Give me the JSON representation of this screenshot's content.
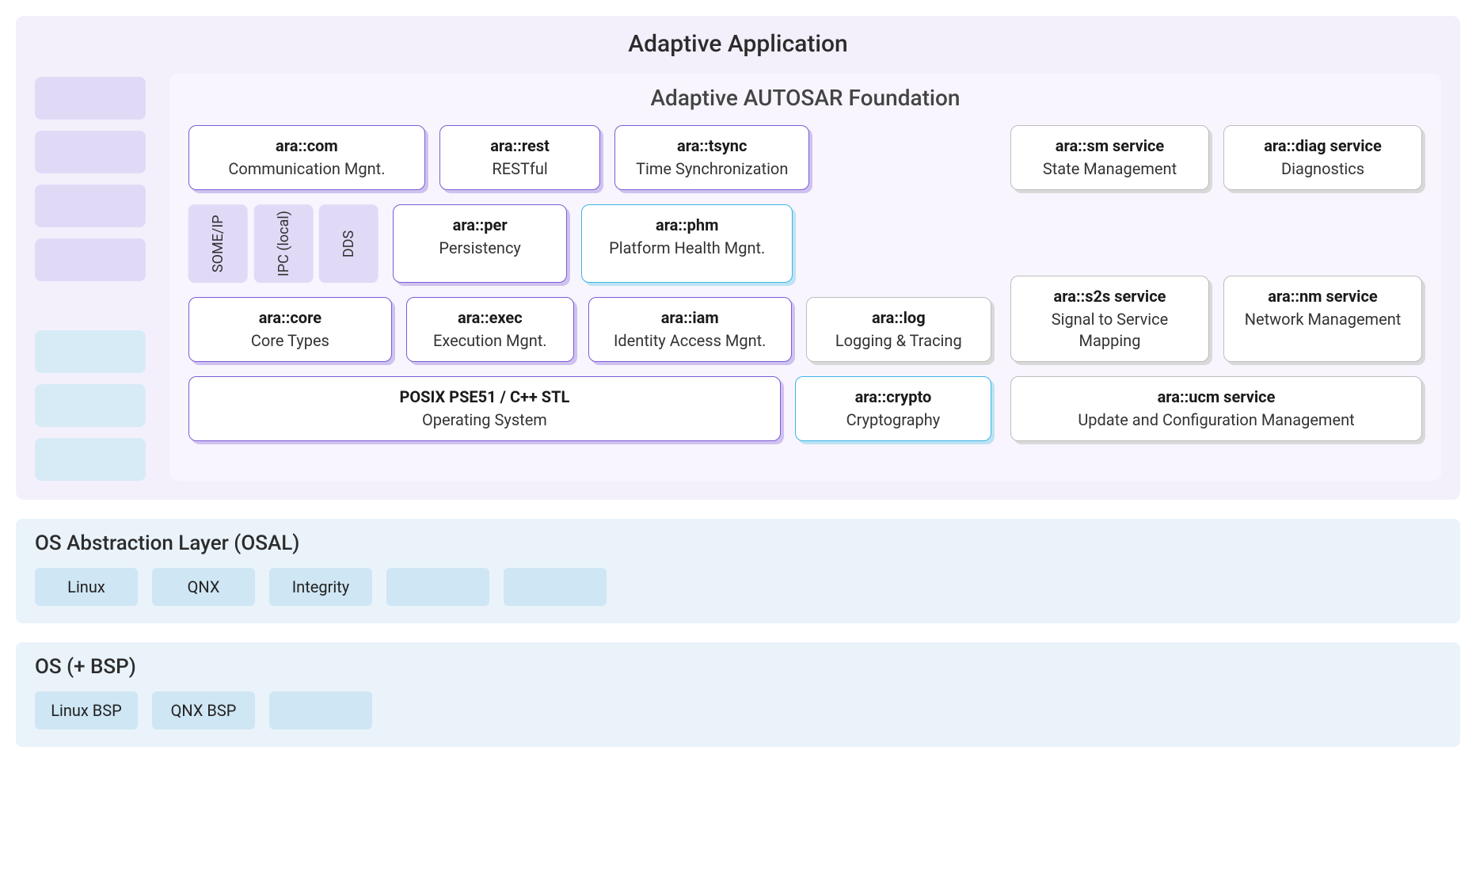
{
  "type": "infographic",
  "colors": {
    "app_bg": "#f3f0fc",
    "foundation_bg": "#f8f5fe",
    "sidebar_purple": "#e1daf7",
    "sidebar_blue": "#d7ebf7",
    "proto_bg": "#e1daf7",
    "purple_border": "#7b5cd6",
    "purple_shadow": "#cfc2ef",
    "blue_border": "#3fb4e6",
    "blue_shadow": "#bde3f4",
    "gray_border": "#bdbdbd",
    "gray_shadow": "#d9d9d9",
    "lower_bg": "#eaf3fa",
    "pill_bg": "#cfe6f4",
    "title_color": "#2c2c2c"
  },
  "app": {
    "title": "Adaptive Application"
  },
  "foundation": {
    "title": "Adaptive AUTOSAR Foundation"
  },
  "mods": {
    "com": {
      "title": "ara::com",
      "sub": "Communication Mgnt."
    },
    "rest": {
      "title": "ara::rest",
      "sub": "RESTful"
    },
    "tsync": {
      "title": "ara::tsync",
      "sub": "Time Synchronization"
    },
    "per": {
      "title": "ara::per",
      "sub": "Persistency"
    },
    "phm": {
      "title": "ara::phm",
      "sub": "Platform Health Mgnt."
    },
    "core": {
      "title": "ara::core",
      "sub": "Core Types"
    },
    "exec": {
      "title": "ara::exec",
      "sub": "Execution Mgnt."
    },
    "iam": {
      "title": "ara::iam",
      "sub": "Identity Access Mgnt."
    },
    "log": {
      "title": "ara::log",
      "sub": "Logging & Tracing"
    },
    "posix": {
      "title": "POSIX PSE51 / C++ STL",
      "sub": "Operating System"
    },
    "crypto": {
      "title": "ara::crypto",
      "sub": "Cryptography"
    }
  },
  "protocols": {
    "someip": "SOME/IP",
    "ipc": "IPC (local)",
    "dds": "DDS"
  },
  "services": {
    "sm": {
      "title": "ara::sm service",
      "sub": "State Management"
    },
    "diag": {
      "title": "ara::diag service",
      "sub": "Diagnostics"
    },
    "s2s": {
      "title": "ara::s2s service",
      "sub": "Signal to Service Mapping"
    },
    "nm": {
      "title": "ara::nm service",
      "sub": "Network Management"
    },
    "ucm": {
      "title": "ara::ucm service",
      "sub": "Update and Configuration Management"
    }
  },
  "osal": {
    "title": "OS Abstraction Layer (OSAL)",
    "items": [
      "Linux",
      "QNX",
      "Integrity",
      "",
      ""
    ]
  },
  "os": {
    "title": "OS (+ BSP)",
    "items": [
      "Linux BSP",
      "QNX BSP",
      ""
    ]
  }
}
